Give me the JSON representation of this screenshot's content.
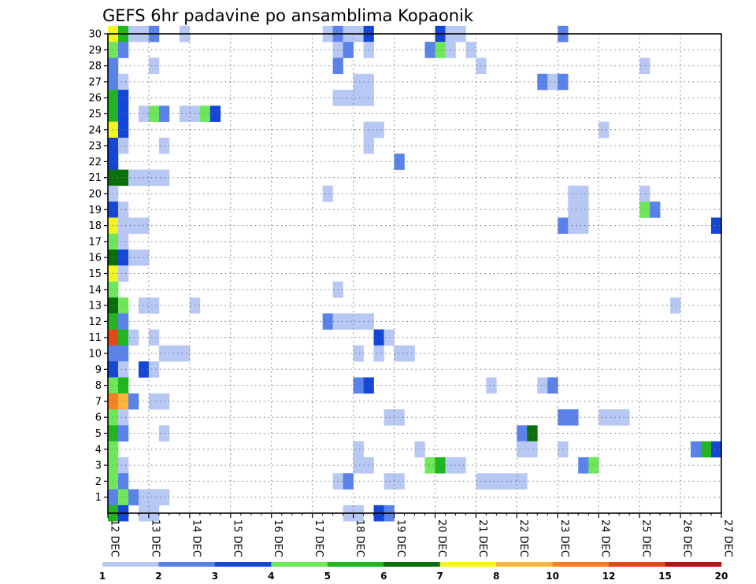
{
  "chart_data": {
    "type": "heatmap",
    "title": "GEFS 6hr padavine po ansamblima Kopaonik",
    "xlabel": "",
    "ylabel": "",
    "x_tick_labels": [
      "12 DEC",
      "13 DEC",
      "14 DEC",
      "15 DEC",
      "16 DEC",
      "17 DEC",
      "18 DEC",
      "19 DEC",
      "20 DEC",
      "21 DEC",
      "22 DEC",
      "23 DEC",
      "24 DEC",
      "25 DEC",
      "26 DEC",
      "27 DEC"
    ],
    "x_range_days": [
      0,
      15
    ],
    "y_tick_labels": [
      "1",
      "2",
      "3",
      "4",
      "5",
      "6",
      "7",
      "8",
      "9",
      "10",
      "11",
      "12",
      "13",
      "14",
      "15",
      "16",
      "17",
      "18",
      "19",
      "20",
      "21",
      "22",
      "23",
      "24",
      "25",
      "26",
      "27",
      "28",
      "29",
      "30"
    ],
    "y_range": [
      0,
      30
    ],
    "grid": true,
    "colorbar": {
      "labels": [
        "1",
        "2",
        "3",
        "4",
        "5",
        "6",
        "7",
        "8",
        "10",
        "12",
        "15",
        "20"
      ],
      "colors": [
        "#b8c8f5",
        "#5a82eb",
        "#1446d8",
        "#6ee85a",
        "#1fb61f",
        "#0a6e0a",
        "#f5f51e",
        "#ffb43c",
        "#f5821e",
        "#e64614",
        "#b41414",
        "#6e0a0a"
      ]
    },
    "legend_placement": "bottom",
    "columns": 60,
    "cells": [
      [
        0,
        30,
        6
      ],
      [
        1,
        30,
        4
      ],
      [
        2,
        30,
        0
      ],
      [
        3,
        30,
        0
      ],
      [
        4,
        30,
        1
      ],
      [
        7,
        30,
        0
      ],
      [
        21,
        30,
        0
      ],
      [
        22,
        30,
        1
      ],
      [
        23,
        30,
        0
      ],
      [
        24,
        30,
        0
      ],
      [
        25,
        30,
        2
      ],
      [
        32,
        30,
        2
      ],
      [
        33,
        30,
        0
      ],
      [
        34,
        30,
        0
      ],
      [
        44,
        30,
        1
      ],
      [
        0,
        29,
        3
      ],
      [
        1,
        29,
        1
      ],
      [
        22,
        29,
        0
      ],
      [
        23,
        29,
        1
      ],
      [
        25,
        29,
        0
      ],
      [
        31,
        29,
        1
      ],
      [
        32,
        29,
        3
      ],
      [
        33,
        29,
        0
      ],
      [
        35,
        29,
        0
      ],
      [
        0,
        28,
        1
      ],
      [
        4,
        28,
        0
      ],
      [
        22,
        28,
        1
      ],
      [
        36,
        28,
        0
      ],
      [
        52,
        28,
        0
      ],
      [
        0,
        27,
        1
      ],
      [
        1,
        27,
        0
      ],
      [
        24,
        27,
        0
      ],
      [
        25,
        27,
        0
      ],
      [
        42,
        27,
        1
      ],
      [
        43,
        27,
        0
      ],
      [
        44,
        27,
        1
      ],
      [
        0,
        26,
        4
      ],
      [
        1,
        26,
        2
      ],
      [
        22,
        26,
        0
      ],
      [
        23,
        26,
        0
      ],
      [
        24,
        26,
        0
      ],
      [
        25,
        26,
        0
      ],
      [
        0,
        25,
        4
      ],
      [
        1,
        25,
        2
      ],
      [
        3,
        25,
        0
      ],
      [
        4,
        25,
        3
      ],
      [
        5,
        25,
        1
      ],
      [
        7,
        25,
        0
      ],
      [
        8,
        25,
        0
      ],
      [
        9,
        25,
        3
      ],
      [
        10,
        25,
        2
      ],
      [
        0,
        24,
        6
      ],
      [
        1,
        24,
        2
      ],
      [
        25,
        24,
        0
      ],
      [
        26,
        24,
        0
      ],
      [
        48,
        24,
        0
      ],
      [
        0,
        23,
        2
      ],
      [
        1,
        23,
        0
      ],
      [
        5,
        23,
        0
      ],
      [
        25,
        23,
        0
      ],
      [
        0,
        22,
        2
      ],
      [
        28,
        22,
        1
      ],
      [
        0,
        21,
        5
      ],
      [
        1,
        21,
        5
      ],
      [
        2,
        21,
        0
      ],
      [
        3,
        21,
        0
      ],
      [
        4,
        21,
        0
      ],
      [
        5,
        21,
        0
      ],
      [
        0,
        20,
        0
      ],
      [
        21,
        20,
        0
      ],
      [
        45,
        20,
        0
      ],
      [
        46,
        20,
        0
      ],
      [
        52,
        20,
        0
      ],
      [
        0,
        19,
        2
      ],
      [
        1,
        19,
        0
      ],
      [
        45,
        19,
        0
      ],
      [
        46,
        19,
        0
      ],
      [
        52,
        19,
        3
      ],
      [
        53,
        19,
        1
      ],
      [
        0,
        18,
        6
      ],
      [
        1,
        18,
        0
      ],
      [
        2,
        18,
        0
      ],
      [
        3,
        18,
        0
      ],
      [
        44,
        18,
        1
      ],
      [
        45,
        18,
        0
      ],
      [
        46,
        18,
        0
      ],
      [
        59,
        18,
        2
      ],
      [
        0,
        17,
        3
      ],
      [
        1,
        17,
        0
      ],
      [
        0,
        16,
        5
      ],
      [
        1,
        16,
        2
      ],
      [
        2,
        16,
        0
      ],
      [
        3,
        16,
        0
      ],
      [
        0,
        15,
        6
      ],
      [
        1,
        15,
        0
      ],
      [
        0,
        14,
        3
      ],
      [
        22,
        14,
        0
      ],
      [
        0,
        13,
        5
      ],
      [
        1,
        13,
        3
      ],
      [
        3,
        13,
        0
      ],
      [
        4,
        13,
        0
      ],
      [
        8,
        13,
        0
      ],
      [
        55,
        13,
        0
      ],
      [
        0,
        12,
        4
      ],
      [
        1,
        12,
        1
      ],
      [
        21,
        12,
        1
      ],
      [
        22,
        12,
        0
      ],
      [
        23,
        12,
        0
      ],
      [
        24,
        12,
        0
      ],
      [
        25,
        12,
        0
      ],
      [
        0,
        11,
        9
      ],
      [
        1,
        11,
        4
      ],
      [
        2,
        11,
        0
      ],
      [
        4,
        11,
        0
      ],
      [
        26,
        11,
        2
      ],
      [
        27,
        11,
        0
      ],
      [
        0,
        10,
        1
      ],
      [
        1,
        10,
        1
      ],
      [
        5,
        10,
        0
      ],
      [
        6,
        10,
        0
      ],
      [
        7,
        10,
        0
      ],
      [
        24,
        10,
        0
      ],
      [
        26,
        10,
        0
      ],
      [
        28,
        10,
        0
      ],
      [
        29,
        10,
        0
      ],
      [
        0,
        9,
        2
      ],
      [
        1,
        9,
        0
      ],
      [
        3,
        9,
        2
      ],
      [
        4,
        9,
        0
      ],
      [
        0,
        8,
        3
      ],
      [
        1,
        8,
        4
      ],
      [
        24,
        8,
        1
      ],
      [
        25,
        8,
        2
      ],
      [
        37,
        8,
        0
      ],
      [
        42,
        8,
        0
      ],
      [
        43,
        8,
        1
      ],
      [
        0,
        7,
        8
      ],
      [
        1,
        7,
        7
      ],
      [
        2,
        7,
        1
      ],
      [
        4,
        7,
        0
      ],
      [
        5,
        7,
        0
      ],
      [
        0,
        6,
        3
      ],
      [
        1,
        6,
        0
      ],
      [
        27,
        6,
        0
      ],
      [
        28,
        6,
        0
      ],
      [
        44,
        6,
        1
      ],
      [
        45,
        6,
        1
      ],
      [
        48,
        6,
        0
      ],
      [
        49,
        6,
        0
      ],
      [
        50,
        6,
        0
      ],
      [
        0,
        5,
        4
      ],
      [
        1,
        5,
        1
      ],
      [
        5,
        5,
        0
      ],
      [
        40,
        5,
        1
      ],
      [
        41,
        5,
        5
      ],
      [
        0,
        4,
        3
      ],
      [
        24,
        4,
        0
      ],
      [
        30,
        4,
        0
      ],
      [
        40,
        4,
        0
      ],
      [
        41,
        4,
        0
      ],
      [
        44,
        4,
        0
      ],
      [
        57,
        4,
        1
      ],
      [
        58,
        4,
        4
      ],
      [
        59,
        4,
        2
      ],
      [
        0,
        3,
        3
      ],
      [
        1,
        3,
        0
      ],
      [
        24,
        3,
        0
      ],
      [
        25,
        3,
        0
      ],
      [
        31,
        3,
        3
      ],
      [
        32,
        3,
        4
      ],
      [
        33,
        3,
        0
      ],
      [
        34,
        3,
        0
      ],
      [
        46,
        3,
        1
      ],
      [
        47,
        3,
        3
      ],
      [
        0,
        2,
        3
      ],
      [
        1,
        2,
        1
      ],
      [
        22,
        2,
        0
      ],
      [
        23,
        2,
        1
      ],
      [
        27,
        2,
        0
      ],
      [
        28,
        2,
        0
      ],
      [
        36,
        2,
        0
      ],
      [
        37,
        2,
        0
      ],
      [
        38,
        2,
        0
      ],
      [
        39,
        2,
        0
      ],
      [
        40,
        2,
        0
      ],
      [
        0,
        1,
        1
      ],
      [
        1,
        1,
        3
      ],
      [
        2,
        1,
        1
      ],
      [
        3,
        1,
        0
      ],
      [
        4,
        1,
        0
      ],
      [
        5,
        1,
        0
      ],
      [
        0,
        0,
        4
      ],
      [
        1,
        0,
        2
      ],
      [
        3,
        0,
        0
      ],
      [
        4,
        0,
        0
      ],
      [
        23,
        0,
        0
      ],
      [
        24,
        0,
        0
      ],
      [
        26,
        0,
        2
      ],
      [
        27,
        0,
        1
      ]
    ]
  }
}
